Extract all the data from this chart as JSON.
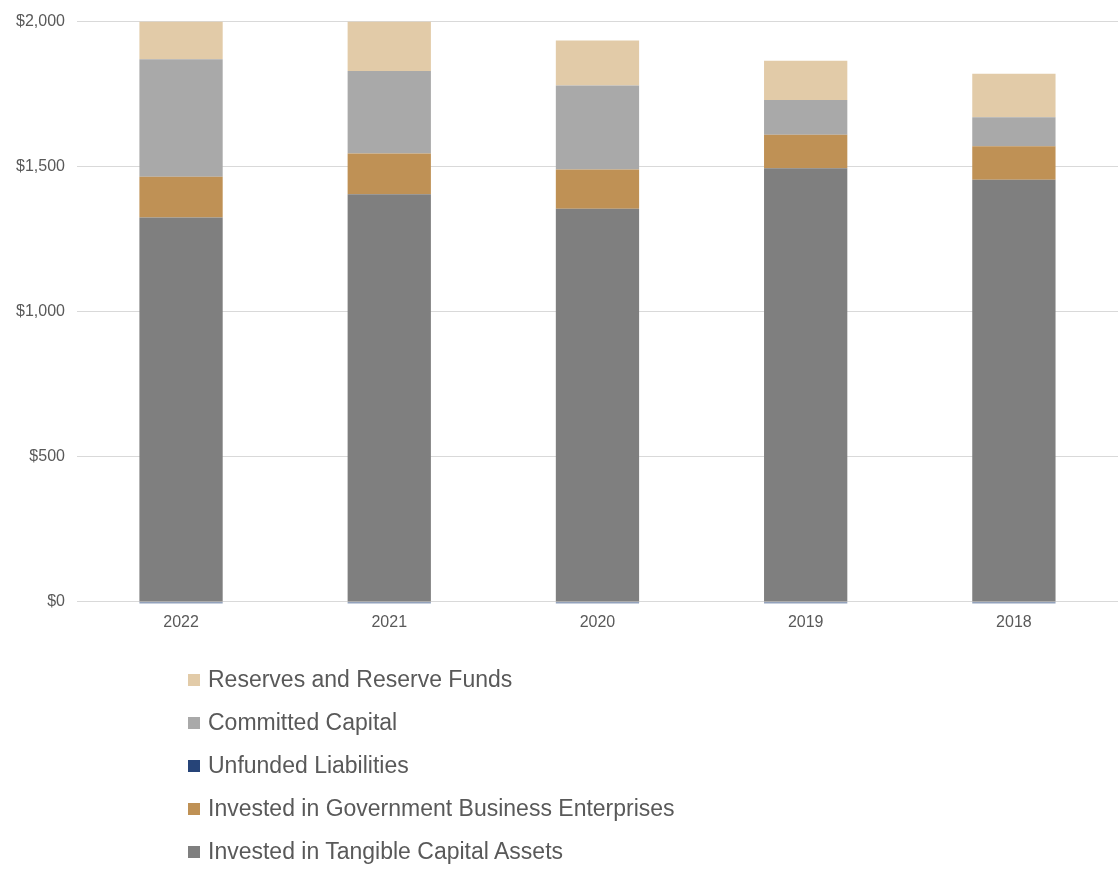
{
  "chart_data": {
    "type": "bar",
    "stacked": true,
    "categories": [
      "2022",
      "2021",
      "2020",
      "2019",
      "2018"
    ],
    "series": [
      {
        "name": "Invested in Tangible Capital Assets",
        "color": "#7f7f7f",
        "values": [
          1325,
          1405,
          1355,
          1495,
          1455
        ]
      },
      {
        "name": "Invested in Government Business Enterprises",
        "color": "#bf9155",
        "values": [
          140,
          140,
          135,
          115,
          115
        ]
      },
      {
        "name": "Unfunded Liabilities",
        "color": "#264478",
        "values": [
          -5,
          -5,
          -5,
          -5,
          -5
        ]
      },
      {
        "name": "Committed Capital",
        "color": "#a9a9a9",
        "values": [
          405,
          285,
          290,
          120,
          100
        ]
      },
      {
        "name": "Reserves and Reserve Funds",
        "color": "#e2cba8",
        "values": [
          130,
          170,
          155,
          135,
          150
        ]
      }
    ],
    "ylim": [
      -10,
      2000
    ],
    "yticks": [
      {
        "value": 0,
        "label": "$0"
      },
      {
        "value": 500,
        "label": "$500"
      },
      {
        "value": 1000,
        "label": "$1,000"
      },
      {
        "value": 1500,
        "label": "$1,500"
      },
      {
        "value": 2000,
        "label": "$2,000"
      }
    ],
    "grid": "y",
    "legend": "bottom"
  }
}
